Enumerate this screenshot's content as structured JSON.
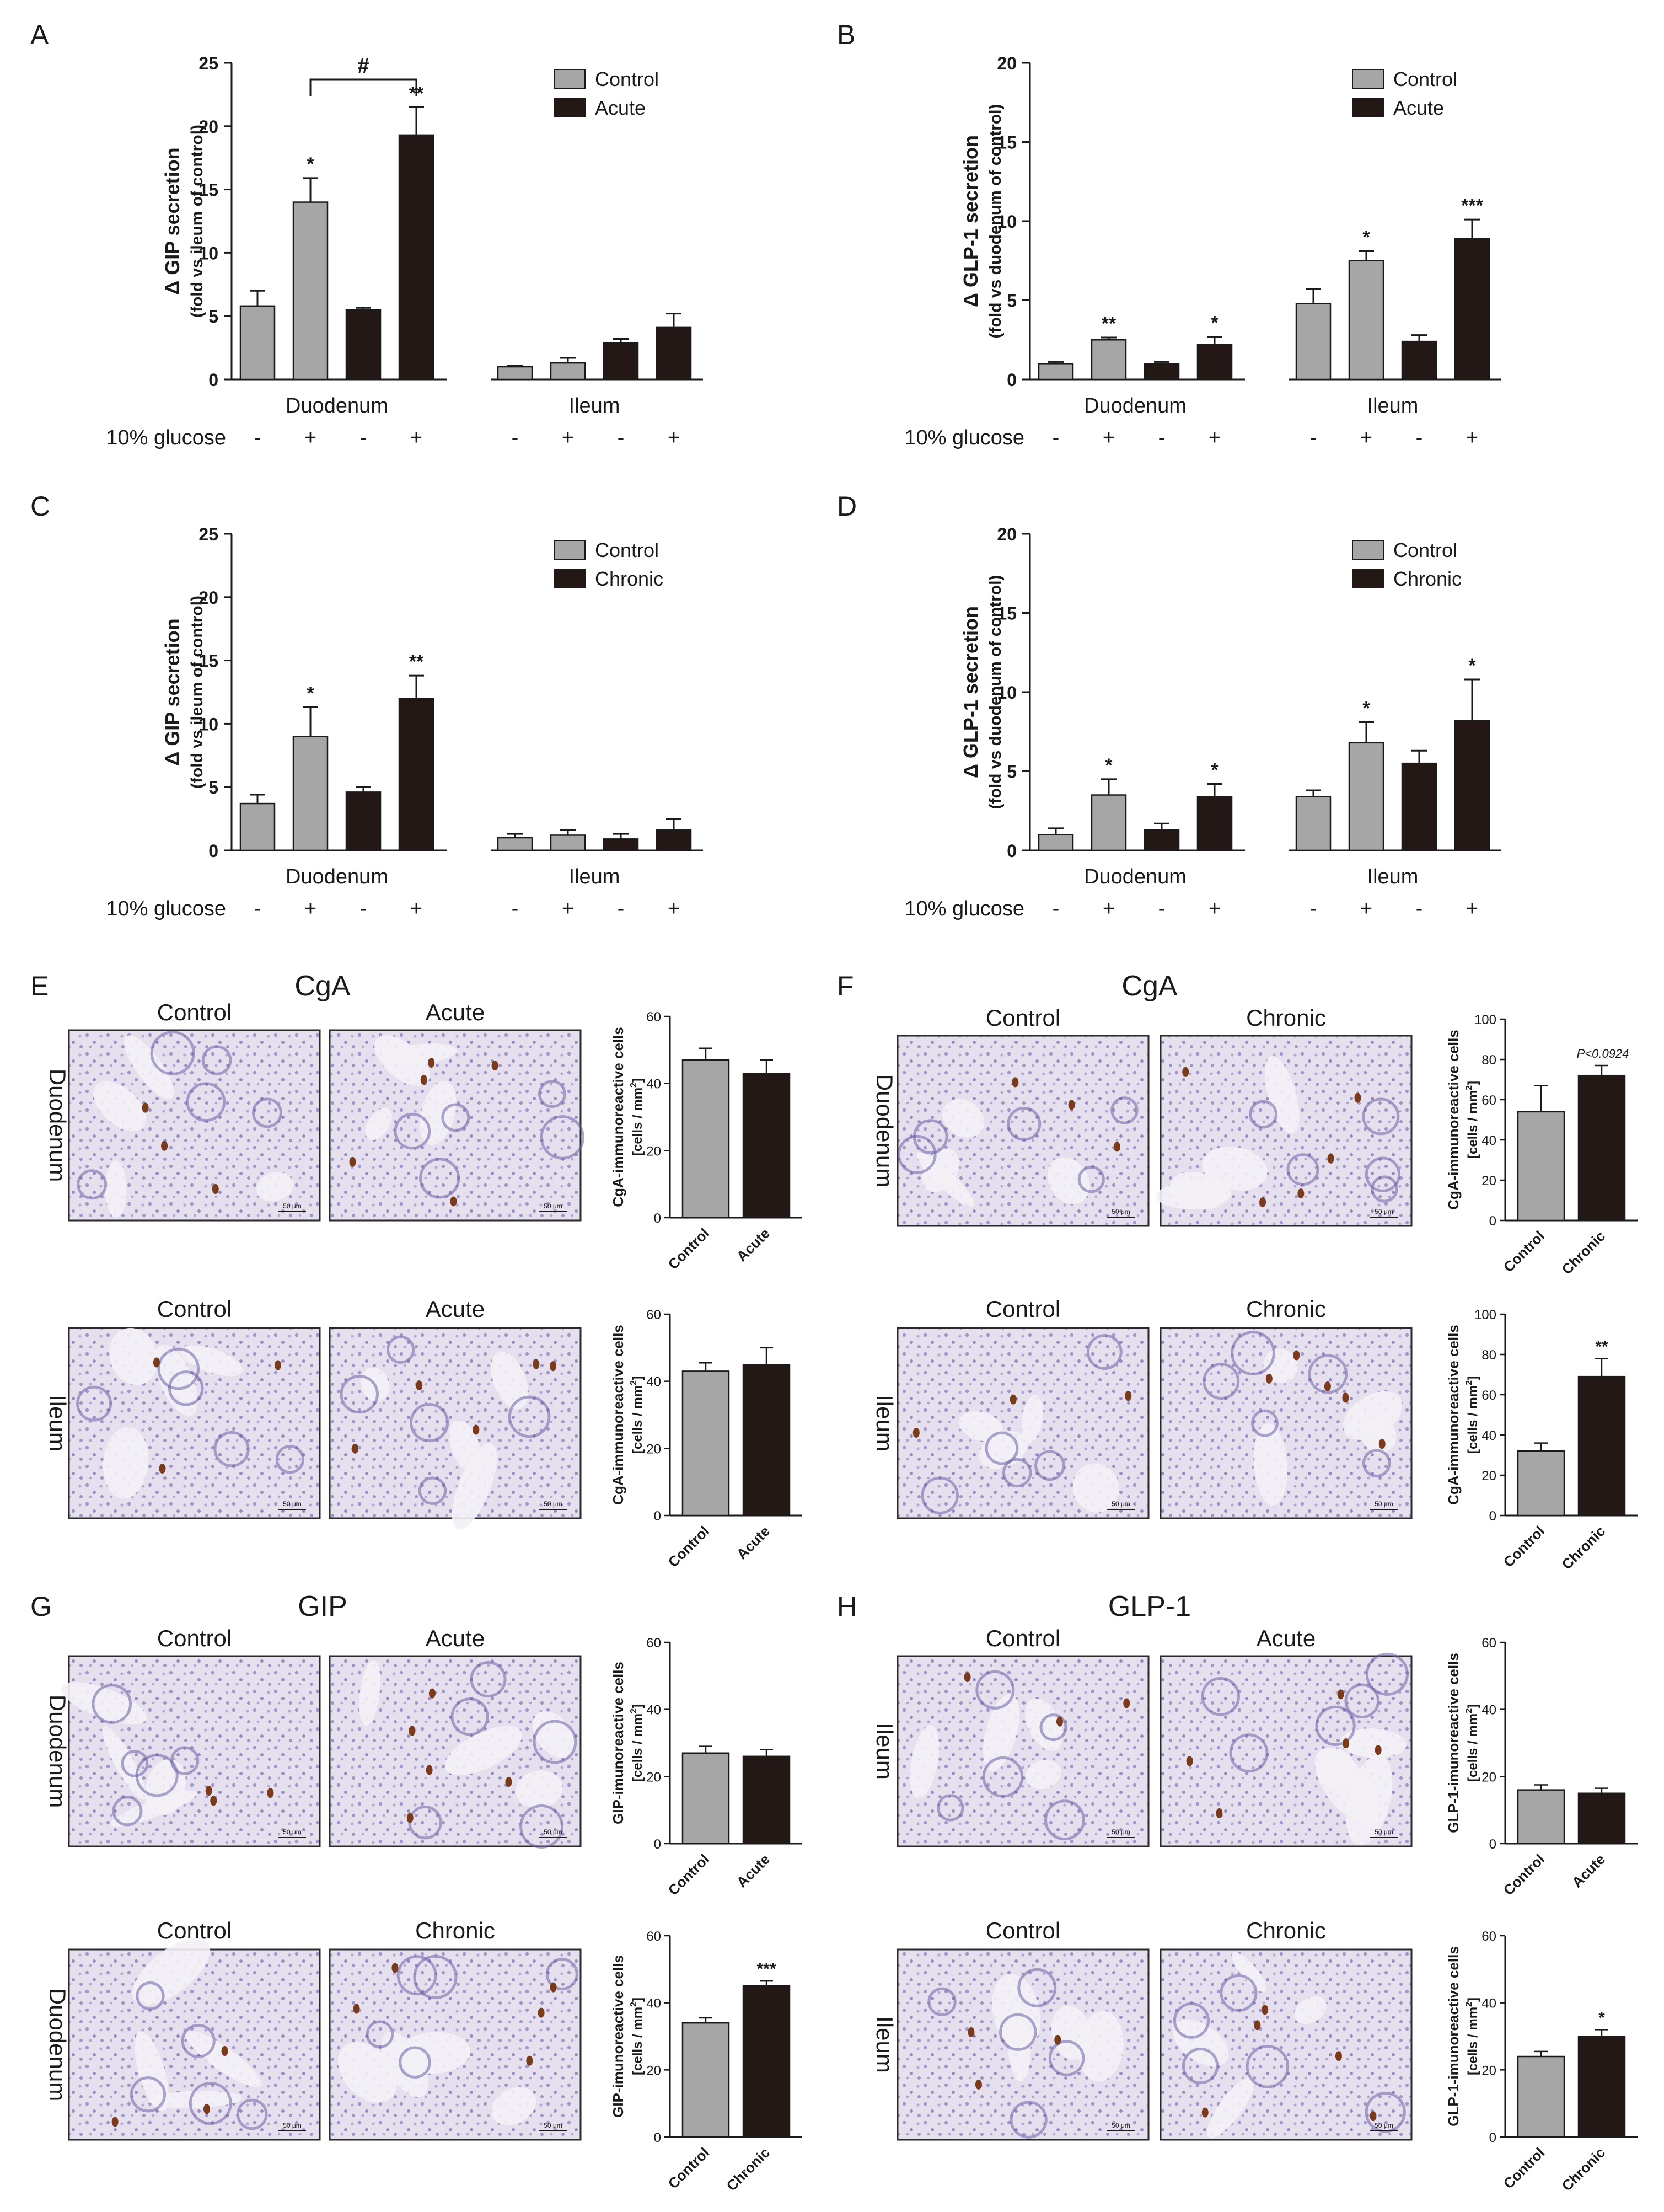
{
  "colors": {
    "control": "#a6a6a6",
    "treated": "#231816",
    "axis": "#1a1a1a",
    "tissue_bg": "#e9e4ef",
    "tissue_cell": "#7f74b6",
    "tissue_stain": "#7a3b1c"
  },
  "bar_charts": [
    {
      "panel": "A",
      "ylabel": "Δ GIP secretion",
      "ylabel2": "(fold vs ileum of control)",
      "ymax": 25,
      "yticks": [
        "0",
        "5",
        "10",
        "15",
        "20",
        "25"
      ],
      "legend": [
        "Control",
        "Acute"
      ],
      "groups": [
        "Duodenum",
        "Ileum"
      ],
      "row_label": "10% glucose",
      "signs": [
        "-",
        "+",
        "-",
        "+",
        "-",
        "+",
        "-",
        "+"
      ],
      "bracket": "#",
      "bars": [
        {
          "v": 5.8,
          "e": 1.2,
          "s": ""
        },
        {
          "v": 14.0,
          "e": 1.9,
          "s": "*"
        },
        {
          "v": 5.5,
          "e": 0.15,
          "s": ""
        },
        {
          "v": 19.3,
          "e": 2.2,
          "s": "**"
        },
        {
          "v": 1.0,
          "e": 0.1,
          "s": ""
        },
        {
          "v": 1.3,
          "e": 0.4,
          "s": ""
        },
        {
          "v": 2.9,
          "e": 0.3,
          "s": ""
        },
        {
          "v": 4.1,
          "e": 1.1,
          "s": ""
        }
      ]
    },
    {
      "panel": "B",
      "ylabel": "Δ GLP-1 secretion",
      "ylabel2": "(fold vs duodenum of control)",
      "ymax": 20,
      "yticks": [
        "0",
        "5",
        "10",
        "15",
        "20"
      ],
      "legend": [
        "Control",
        "Acute"
      ],
      "groups": [
        "Duodenum",
        "Ileum"
      ],
      "row_label": "10% glucose",
      "signs": [
        "-",
        "+",
        "-",
        "+",
        "-",
        "+",
        "-",
        "+"
      ],
      "bracket": "",
      "bars": [
        {
          "v": 1.0,
          "e": 0.1,
          "s": ""
        },
        {
          "v": 2.5,
          "e": 0.15,
          "s": "**"
        },
        {
          "v": 1.0,
          "e": 0.1,
          "s": ""
        },
        {
          "v": 2.2,
          "e": 0.5,
          "s": "*"
        },
        {
          "v": 4.8,
          "e": 0.9,
          "s": ""
        },
        {
          "v": 7.5,
          "e": 0.6,
          "s": "*"
        },
        {
          "v": 2.4,
          "e": 0.4,
          "s": ""
        },
        {
          "v": 8.9,
          "e": 1.2,
          "s": "***"
        }
      ]
    },
    {
      "panel": "C",
      "ylabel": "Δ GIP secretion",
      "ylabel2": "(fold vs ileum of control)",
      "ymax": 25,
      "yticks": [
        "0",
        "5",
        "10",
        "15",
        "20",
        "25"
      ],
      "legend": [
        "Control",
        "Chronic"
      ],
      "groups": [
        "Duodenum",
        "Ileum"
      ],
      "row_label": "10% glucose",
      "signs": [
        "-",
        "+",
        "-",
        "+",
        "-",
        "+",
        "-",
        "+"
      ],
      "bracket": "",
      "bars": [
        {
          "v": 3.7,
          "e": 0.7,
          "s": ""
        },
        {
          "v": 9.0,
          "e": 2.3,
          "s": "*"
        },
        {
          "v": 4.6,
          "e": 0.4,
          "s": ""
        },
        {
          "v": 12.0,
          "e": 1.8,
          "s": "**"
        },
        {
          "v": 1.0,
          "e": 0.3,
          "s": ""
        },
        {
          "v": 1.2,
          "e": 0.4,
          "s": ""
        },
        {
          "v": 0.9,
          "e": 0.4,
          "s": ""
        },
        {
          "v": 1.6,
          "e": 0.9,
          "s": ""
        }
      ]
    },
    {
      "panel": "D",
      "ylabel": "Δ GLP-1 secretion",
      "ylabel2": "(fold vs duodenum of control)",
      "ymax": 20,
      "yticks": [
        "0",
        "5",
        "10",
        "15",
        "20"
      ],
      "legend": [
        "Control",
        "Chronic"
      ],
      "groups": [
        "Duodenum",
        "Ileum"
      ],
      "row_label": "10% glucose",
      "signs": [
        "-",
        "+",
        "-",
        "+",
        "-",
        "+",
        "-",
        "+"
      ],
      "bracket": "",
      "bars": [
        {
          "v": 1.0,
          "e": 0.4,
          "s": ""
        },
        {
          "v": 3.5,
          "e": 1.0,
          "s": "*"
        },
        {
          "v": 1.3,
          "e": 0.4,
          "s": ""
        },
        {
          "v": 3.4,
          "e": 0.8,
          "s": "*"
        },
        {
          "v": 3.4,
          "e": 0.4,
          "s": ""
        },
        {
          "v": 6.8,
          "e": 1.3,
          "s": "*"
        },
        {
          "v": 5.5,
          "e": 0.8,
          "s": ""
        },
        {
          "v": 8.2,
          "e": 2.6,
          "s": "*"
        }
      ]
    }
  ],
  "image_panels": [
    {
      "panel": "E",
      "title": "CgA",
      "rows": [
        {
          "tissue": "Duodenum",
          "labels": [
            "Control",
            "Acute"
          ],
          "scale": "50 μm",
          "chart": {
            "ylabel": "CgA-immunoreactive cells",
            "unit_pre": "[cells / mm",
            "unit_sup": "2",
            "unit_post": "]",
            "ymax": 60,
            "yticks": [
              "0",
              "20",
              "40",
              "60"
            ],
            "cats": [
              "Control",
              "Acute"
            ],
            "values": [
              47,
              43
            ],
            "errors": [
              3.5,
              4
            ],
            "sig": "",
            "note": ""
          }
        },
        {
          "tissue": "Ileum",
          "labels": [
            "Control",
            "Acute"
          ],
          "scale": "50 μm",
          "chart": {
            "ylabel": "CgA-immunoreactive cells",
            "unit_pre": "[cells / mm",
            "unit_sup": "2",
            "unit_post": "]",
            "ymax": 60,
            "yticks": [
              "0",
              "20",
              "40",
              "60"
            ],
            "cats": [
              "Control",
              "Acute"
            ],
            "values": [
              43,
              45
            ],
            "errors": [
              2.5,
              5
            ],
            "sig": "",
            "note": ""
          }
        }
      ]
    },
    {
      "panel": "F",
      "title": "CgA",
      "rows": [
        {
          "tissue": "Duodenum",
          "labels": [
            "Control",
            "Chronic"
          ],
          "scale": "50 μm",
          "chart": {
            "ylabel": "CgA-immunoreactive cells",
            "unit_pre": "[cells / mm",
            "unit_sup": "2",
            "unit_post": "]",
            "ymax": 100,
            "yticks": [
              "0",
              "20",
              "40",
              "60",
              "80",
              "100"
            ],
            "cats": [
              "Control",
              "Chronic"
            ],
            "values": [
              54,
              72
            ],
            "errors": [
              13,
              5
            ],
            "sig": "",
            "note": "P<0.0924"
          }
        },
        {
          "tissue": "Ileum",
          "labels": [
            "Control",
            "Chronic"
          ],
          "scale": "50 μm",
          "chart": {
            "ylabel": "CgA-immunoreactive cells",
            "unit_pre": "[cells / mm",
            "unit_sup": "2",
            "unit_post": "]",
            "ymax": 100,
            "yticks": [
              "0",
              "20",
              "40",
              "60",
              "80",
              "100"
            ],
            "cats": [
              "Control",
              "Chronic"
            ],
            "values": [
              32,
              69
            ],
            "errors": [
              4,
              9
            ],
            "sig": "**",
            "note": ""
          }
        }
      ]
    },
    {
      "panel": "G",
      "title": "GIP",
      "rows": [
        {
          "tissue": "Duodenum",
          "labels": [
            "Control",
            "Acute"
          ],
          "scale": "50 μm",
          "chart": {
            "ylabel": "GIP-imunoreactive cells",
            "unit_pre": "[cells / mm",
            "unit_sup": "2",
            "unit_post": "]",
            "ymax": 60,
            "yticks": [
              "0",
              "20",
              "40",
              "60"
            ],
            "cats": [
              "Control",
              "Acute"
            ],
            "values": [
              27,
              26
            ],
            "errors": [
              2,
              2
            ],
            "sig": "",
            "note": ""
          }
        },
        {
          "tissue": "Duodenum",
          "labels": [
            "Control",
            "Chronic"
          ],
          "scale": "50 μm",
          "chart": {
            "ylabel": "GIP-imunoreactive cells",
            "unit_pre": "[cells / mm",
            "unit_sup": "2",
            "unit_post": "]",
            "ymax": 60,
            "yticks": [
              "0",
              "20",
              "40",
              "60"
            ],
            "cats": [
              "Control",
              "Chronic"
            ],
            "values": [
              34,
              45
            ],
            "errors": [
              1.5,
              1.5
            ],
            "sig": "***",
            "note": ""
          }
        }
      ]
    },
    {
      "panel": "H",
      "title": "GLP-1",
      "rows": [
        {
          "tissue": "Ileum",
          "labels": [
            "Control",
            "Acute"
          ],
          "scale": "50 μm",
          "chart": {
            "ylabel": "GLP-1-imunoreactive cells",
            "unit_pre": "[cells / mm",
            "unit_sup": "2",
            "unit_post": "]",
            "ymax": 60,
            "yticks": [
              "0",
              "20",
              "40",
              "60"
            ],
            "cats": [
              "Control",
              "Acute"
            ],
            "values": [
              16,
              15
            ],
            "errors": [
              1.5,
              1.5
            ],
            "sig": "",
            "note": ""
          }
        },
        {
          "tissue": "Ileum",
          "labels": [
            "Control",
            "Chronic"
          ],
          "scale": "50 μm",
          "chart": {
            "ylabel": "GLP-1-imunoreactive cells",
            "unit_pre": "[cells / mm",
            "unit_sup": "2",
            "unit_post": "]",
            "ymax": 60,
            "yticks": [
              "0",
              "20",
              "40",
              "60"
            ],
            "cats": [
              "Control",
              "Chronic"
            ],
            "values": [
              24,
              30
            ],
            "errors": [
              1.5,
              2
            ],
            "sig": "*",
            "note": ""
          }
        }
      ]
    }
  ],
  "chart_data": [
    {
      "type": "bar",
      "panel": "A",
      "title": "",
      "categories": [
        "Duodenum -",
        "Duodenum +",
        "Duodenum -",
        "Duodenum +",
        "Ileum -",
        "Ileum +",
        "Ileum -",
        "Ileum +"
      ],
      "series": [
        {
          "name": "Control",
          "values": [
            5.8,
            14.0,
            null,
            null,
            1.0,
            1.3,
            null,
            null
          ]
        },
        {
          "name": "Acute",
          "values": [
            null,
            null,
            5.5,
            19.3,
            null,
            null,
            2.9,
            4.1
          ]
        }
      ],
      "xlabel": "10% glucose",
      "ylabel": "Δ GIP secretion (fold vs ileum of control)",
      "ylim": [
        0,
        25
      ]
    },
    {
      "type": "bar",
      "panel": "B",
      "title": "",
      "categories": [
        "Duodenum -",
        "Duodenum +",
        "Duodenum -",
        "Duodenum +",
        "Ileum -",
        "Ileum +",
        "Ileum -",
        "Ileum +"
      ],
      "series": [
        {
          "name": "Control",
          "values": [
            1.0,
            2.5,
            null,
            null,
            4.8,
            7.5,
            null,
            null
          ]
        },
        {
          "name": "Acute",
          "values": [
            null,
            null,
            1.0,
            2.2,
            null,
            null,
            2.4,
            8.9
          ]
        }
      ],
      "xlabel": "10% glucose",
      "ylabel": "Δ GLP-1 secretion (fold vs duodenum of control)",
      "ylim": [
        0,
        20
      ]
    },
    {
      "type": "bar",
      "panel": "C",
      "title": "",
      "categories": [
        "Duodenum -",
        "Duodenum +",
        "Duodenum -",
        "Duodenum +",
        "Ileum -",
        "Ileum +",
        "Ileum -",
        "Ileum +"
      ],
      "series": [
        {
          "name": "Control",
          "values": [
            3.7,
            9.0,
            null,
            null,
            1.0,
            1.2,
            null,
            null
          ]
        },
        {
          "name": "Chronic",
          "values": [
            null,
            null,
            4.6,
            12.0,
            null,
            null,
            0.9,
            1.6
          ]
        }
      ],
      "xlabel": "10% glucose",
      "ylabel": "Δ GIP secretion (fold vs ileum of control)",
      "ylim": [
        0,
        25
      ]
    },
    {
      "type": "bar",
      "panel": "D",
      "title": "",
      "categories": [
        "Duodenum -",
        "Duodenum +",
        "Duodenum -",
        "Duodenum +",
        "Ileum -",
        "Ileum +",
        "Ileum -",
        "Ileum +"
      ],
      "series": [
        {
          "name": "Control",
          "values": [
            1.0,
            3.5,
            null,
            null,
            3.4,
            6.8,
            null,
            null
          ]
        },
        {
          "name": "Chronic",
          "values": [
            null,
            null,
            1.3,
            3.4,
            null,
            null,
            5.5,
            8.2
          ]
        }
      ],
      "xlabel": "10% glucose",
      "ylabel": "Δ GLP-1 secretion (fold vs duodenum of control)",
      "ylim": [
        0,
        20
      ]
    }
  ]
}
